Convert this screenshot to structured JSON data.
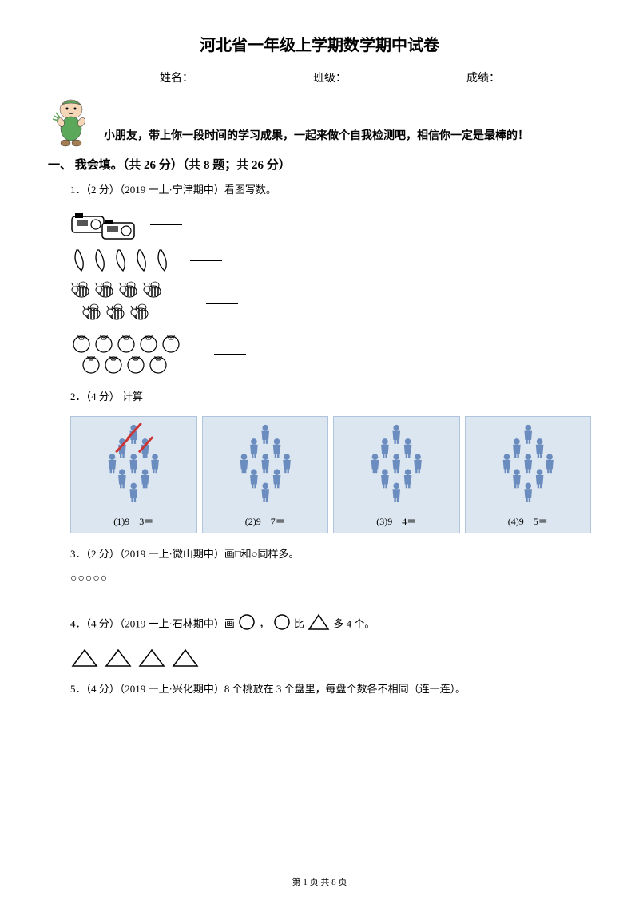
{
  "title": "河北省一年级上学期数学期中试卷",
  "info": {
    "name_label": "姓名：",
    "class_label": "班级：",
    "score_label": "成绩："
  },
  "encourage": "小朋友，带上你一段时间的学习成果，一起来做个自我检测吧，相信你一定是最棒的！",
  "section1": {
    "header": "一、 我会填。（共 26 分）（共 8 题；共 26 分）",
    "q1": "1．（2 分）（2019 一上·宁津期中）看图写数。",
    "q2": "2．（4 分） 计算",
    "q3": "3．（2 分）（2019 一上·微山期中）画□和○同样多。",
    "q3_circles": "○○○○○",
    "q4": "4．（4 分）（2019 一上·石林期中）画",
    "q4_mid": "，",
    "q4_end": "比",
    "q4_tail": "多 4 个。",
    "q5": "5．（4 分）（2019 一上·兴化期中）8 个桃放在 3 个盘里，每盘个数各不相同（连一连）。"
  },
  "calc": {
    "cards": [
      {
        "label": "(1)9－3＝",
        "slashed": 3
      },
      {
        "label": "(2)9－7＝",
        "slashed": 0
      },
      {
        "label": "(3)9－4＝",
        "slashed": 0
      },
      {
        "label": "(4)9－5＝",
        "slashed": 0
      }
    ]
  },
  "colors": {
    "card_bg": "#dce6f0",
    "person": "#6b8cbe",
    "slash": "#cc3333",
    "mascot_green": "#5ba85b",
    "mascot_head": "#f5d7b8",
    "text": "#000000"
  },
  "footer": "第 1 页 共 8 页"
}
